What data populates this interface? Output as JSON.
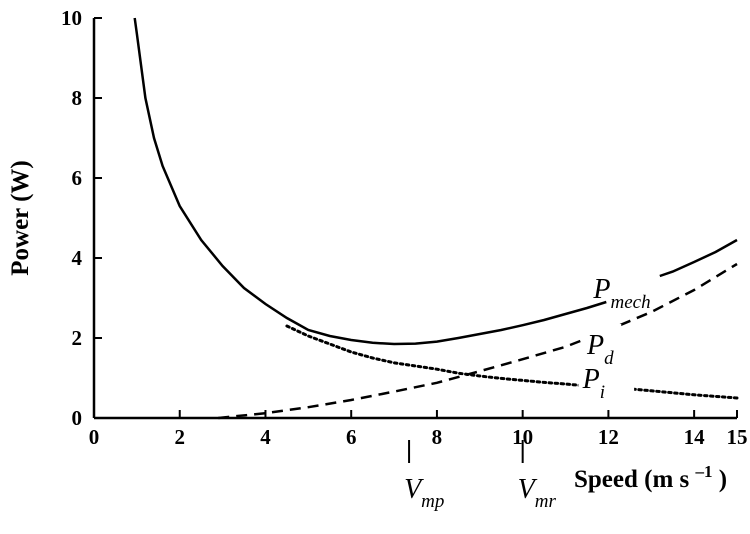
{
  "chart_data": {
    "type": "line",
    "xlabel": "Speed (m s",
    "xlabel_sup": "–1",
    "xlabel_close": ")",
    "ylabel": "Power (W)",
    "xlim": [
      0,
      15
    ],
    "ylim": [
      0,
      10
    ],
    "x_ticks": [
      "0",
      "2",
      "4",
      "6",
      "8",
      "10",
      "12",
      "14",
      "15"
    ],
    "y_ticks": [
      "0",
      "2",
      "4",
      "6",
      "8",
      "10"
    ],
    "grid": false,
    "series": [
      {
        "name": "P",
        "name_sub": "mech",
        "style": "solid",
        "label_at": [
          11.65,
          3.0
        ],
        "points": [
          [
            0.95,
            10
          ],
          [
            1.0,
            9.6
          ],
          [
            1.2,
            8.0
          ],
          [
            1.4,
            7.0
          ],
          [
            1.6,
            6.3
          ],
          [
            2.0,
            5.3
          ],
          [
            2.5,
            4.45
          ],
          [
            3.0,
            3.8
          ],
          [
            3.5,
            3.25
          ],
          [
            4.0,
            2.85
          ],
          [
            4.5,
            2.5
          ],
          [
            5.0,
            2.2
          ],
          [
            5.5,
            2.05
          ],
          [
            6.0,
            1.95
          ],
          [
            6.5,
            1.88
          ],
          [
            7.0,
            1.85
          ],
          [
            7.5,
            1.86
          ],
          [
            8.0,
            1.91
          ],
          [
            8.5,
            2.0
          ],
          [
            9.0,
            2.1
          ],
          [
            9.5,
            2.2
          ],
          [
            10.0,
            2.32
          ],
          [
            10.5,
            2.45
          ],
          [
            11.0,
            2.6
          ],
          [
            11.5,
            2.75
          ],
          [
            11.95,
            2.9
          ],
          [
            13.2,
            3.55
          ],
          [
            13.5,
            3.66
          ],
          [
            14.0,
            3.9
          ],
          [
            14.5,
            4.15
          ],
          [
            15.0,
            4.45
          ]
        ],
        "gap": [
          11.95,
          13.2
        ]
      },
      {
        "name": "P",
        "name_sub": "d",
        "style": "dashed",
        "label_at": [
          11.5,
          1.6
        ],
        "points": [
          [
            2.9,
            0.0
          ],
          [
            4.0,
            0.12
          ],
          [
            5.0,
            0.27
          ],
          [
            6.0,
            0.45
          ],
          [
            7.0,
            0.66
          ],
          [
            8.0,
            0.88
          ],
          [
            9.0,
            1.17
          ],
          [
            10.0,
            1.47
          ],
          [
            11.0,
            1.78
          ],
          [
            12.0,
            2.2
          ],
          [
            13.0,
            2.65
          ],
          [
            14.0,
            3.2
          ],
          [
            15.0,
            3.85
          ]
        ],
        "gap": [
          11.45,
          12.3
        ]
      },
      {
        "name": "P",
        "name_sub": "i",
        "style": "dotted",
        "label_at": [
          11.4,
          0.75
        ],
        "points": [
          [
            4.5,
            2.3
          ],
          [
            5.0,
            2.05
          ],
          [
            5.5,
            1.85
          ],
          [
            6.0,
            1.65
          ],
          [
            6.5,
            1.5
          ],
          [
            7.0,
            1.38
          ],
          [
            7.5,
            1.3
          ],
          [
            8.0,
            1.22
          ],
          [
            8.5,
            1.12
          ],
          [
            9.0,
            1.05
          ],
          [
            9.5,
            0.99
          ],
          [
            10.0,
            0.94
          ],
          [
            10.5,
            0.89
          ],
          [
            11.0,
            0.85
          ],
          [
            11.3,
            0.82
          ],
          [
            12.6,
            0.72
          ],
          [
            13.0,
            0.68
          ],
          [
            13.5,
            0.63
          ],
          [
            14.0,
            0.58
          ],
          [
            14.5,
            0.54
          ],
          [
            15.0,
            0.5
          ]
        ],
        "gap": [
          11.3,
          12.6
        ]
      }
    ],
    "markers": [
      {
        "name": "V",
        "name_sub": "mp",
        "x": 7.35
      },
      {
        "name": "V",
        "name_sub": "mr",
        "x": 10.0
      }
    ]
  }
}
